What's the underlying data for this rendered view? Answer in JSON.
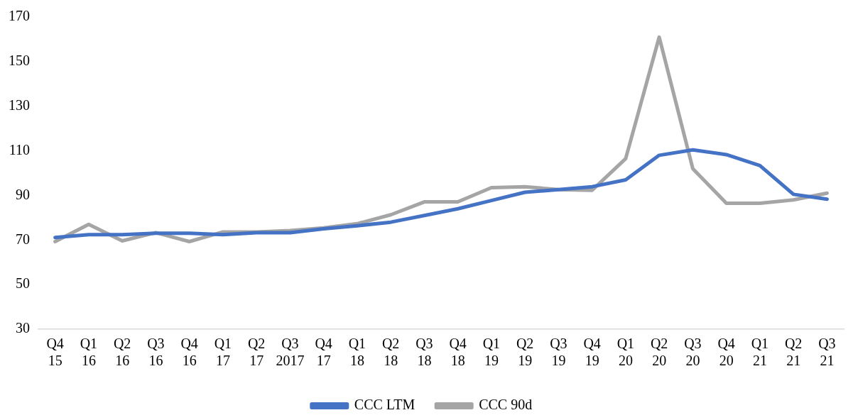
{
  "chart_data": {
    "type": "line",
    "categories": [
      "Q4 15",
      "Q1 16",
      "Q2 16",
      "Q3 16",
      "Q4 16",
      "Q1 17",
      "Q2 17",
      "Q3 2017",
      "Q4 17",
      "Q1 18",
      "Q2 18",
      "Q3 18",
      "Q4 18",
      "Q1 19",
      "Q2 19",
      "Q3 19",
      "Q4 19",
      "Q1 20",
      "Q2 20",
      "Q3 20",
      "Q4 20",
      "Q1 21",
      "Q2 21",
      "Q3 21"
    ],
    "series": [
      {
        "name": "CCC LTM",
        "color": "#4472c4",
        "values": [
          71.1,
          72.4,
          72.4,
          73,
          73,
          72.4,
          73.3,
          73.3,
          75,
          76.4,
          78,
          81,
          84,
          87.7,
          91.4,
          92.6,
          93.9,
          97,
          108,
          110.4,
          108.3,
          103.4,
          90.5,
          88.3
        ]
      },
      {
        "name": "CCC 90d",
        "color": "#a5a5a5",
        "values": [
          69.3,
          77,
          69.6,
          73.3,
          69.3,
          73.6,
          73.6,
          74.2,
          75.4,
          77.3,
          81.3,
          87.1,
          87.1,
          93.5,
          93.9,
          92.6,
          92.3,
          106.5,
          161,
          102,
          86.5,
          86.5,
          88,
          91
        ]
      }
    ],
    "ylim": [
      30,
      170
    ],
    "yticks": [
      30,
      50,
      70,
      90,
      110,
      130,
      150,
      170
    ],
    "grid": false,
    "legend": "bottom",
    "marker": "none",
    "line_style": "solid"
  }
}
